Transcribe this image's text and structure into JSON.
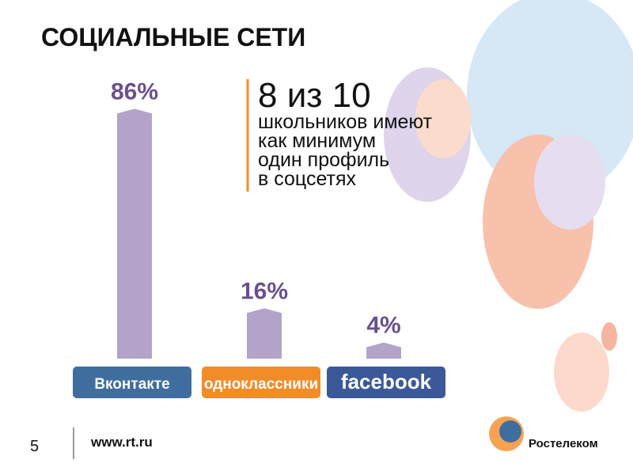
{
  "chart_data": {
    "type": "bar",
    "title": "СОЦИАЛЬНЫЕ СЕТИ",
    "categories": [
      "Вконтакте",
      "одноклассники",
      "facebook"
    ],
    "values": [
      86,
      16,
      4
    ],
    "value_labels": [
      "86%",
      "16%",
      "4%"
    ],
    "color": "#b3a3c9",
    "label_color": "#6b4f8f",
    "category_colors": [
      "#3f6e9e",
      "#f28c28",
      "#3b5998"
    ],
    "annotation": {
      "headline": "8 из 10",
      "lines": [
        "школьников имеют",
        "как минимум",
        "один профиль",
        "в соцсетях"
      ]
    }
  },
  "footer": {
    "page": 5,
    "url": "www.rt.ru",
    "brand": "Ростелеком"
  }
}
